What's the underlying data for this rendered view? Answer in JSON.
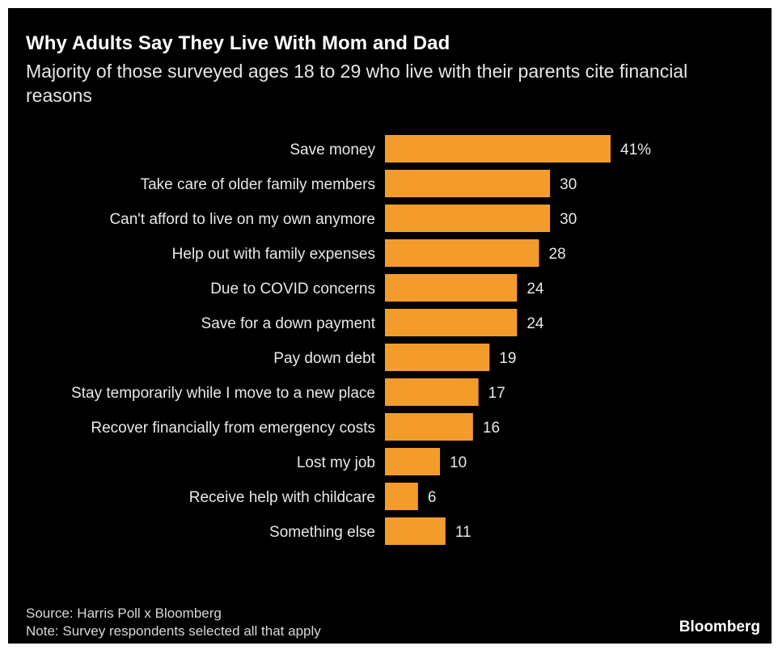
{
  "header": {
    "title": "Why Adults Say They Live With Mom and Dad",
    "subtitle": "Majority of those surveyed ages 18 to 29 who live with their parents cite financial reasons"
  },
  "footer": {
    "source": "Source: Harris Poll x Bloomberg",
    "note": "Note: Survey respondents selected all that apply",
    "brand": "Bloomberg"
  },
  "colors": {
    "bar": "#f39c2b",
    "background": "#000000"
  },
  "chart_data": {
    "type": "bar",
    "orientation": "horizontal",
    "categories": [
      "Save money",
      "Take care of older family members",
      "Can't afford to live on my own anymore",
      "Help out with family expenses",
      "Due to COVID concerns",
      "Save for a down payment",
      "Pay down debt",
      "Stay temporarily while I move to a new place",
      "Recover financially from emergency costs",
      "Lost my job",
      "Receive help with childcare",
      "Something else"
    ],
    "values": [
      41,
      30,
      30,
      28,
      24,
      24,
      19,
      17,
      16,
      10,
      6,
      11
    ],
    "value_labels": [
      "41%",
      "30",
      "30",
      "28",
      "24",
      "24",
      "19",
      "17",
      "16",
      "10",
      "6",
      "11"
    ],
    "xlim": [
      0,
      41
    ],
    "grid": false,
    "legend": "none"
  }
}
